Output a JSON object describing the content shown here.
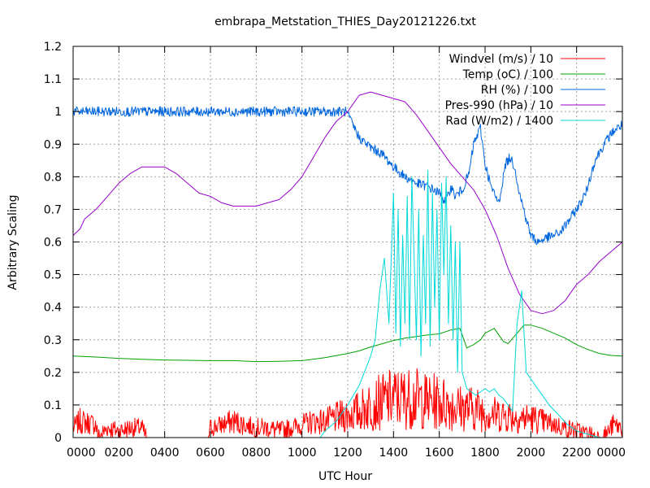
{
  "chart_data": {
    "type": "line",
    "title": "embrapa_Metstation_THIES_Day20121226.txt",
    "xlabel": "UTC Hour",
    "ylabel": "Arbitrary Scaling",
    "xlim": [
      0,
      24
    ],
    "ylim": [
      0,
      1.2
    ],
    "grid": true,
    "legend_position": "top-right",
    "x_tick_labels": [
      "0000",
      "0200",
      "0400",
      "0600",
      "0800",
      "1000",
      "1200",
      "1400",
      "1600",
      "1800",
      "2000",
      "2200",
      "0000"
    ],
    "y_tick_labels": [
      "0",
      "0.1",
      "0.2",
      "0.3",
      "0.4",
      "0.5",
      "0.6",
      "0.7",
      "0.8",
      "0.9",
      "1",
      "1.1",
      "1.2"
    ],
    "series": [
      {
        "name": "Windvel (m/s) / 10",
        "color": "#ff0000",
        "noisy": true,
        "x": [
          0,
          0.3,
          1.0,
          1.1,
          1.5,
          2.0,
          2.5,
          3.0,
          3.2,
          5.9,
          6.0,
          6.5,
          7.0,
          7.5,
          8.0,
          8.5,
          9.0,
          9.5,
          10.0,
          10.5,
          11.0,
          11.5,
          12.0,
          12.5,
          13.0,
          13.5,
          14.0,
          14.5,
          15.0,
          15.5,
          16.0,
          16.5,
          17.0,
          17.5,
          18.0,
          18.5,
          19.0,
          19.5,
          20.0,
          20.5,
          21.0,
          21.5,
          22.0,
          22.5,
          23.0,
          23.3,
          23.6,
          24.0
        ],
        "values": [
          0.03,
          0.05,
          0.04,
          0.0,
          0.03,
          0.02,
          0.03,
          0.03,
          0.0,
          0.0,
          0.03,
          0.04,
          0.05,
          0.04,
          0.03,
          0.03,
          0.02,
          0.03,
          0.04,
          0.05,
          0.05,
          0.06,
          0.07,
          0.08,
          0.1,
          0.11,
          0.12,
          0.12,
          0.12,
          0.11,
          0.11,
          0.1,
          0.09,
          0.09,
          0.08,
          0.07,
          0.07,
          0.06,
          0.06,
          0.05,
          0.04,
          0.03,
          0.02,
          0.01,
          0.0,
          0.01,
          0.04,
          0.03
        ]
      },
      {
        "name": "Temp (oC) / 100",
        "color": "#00a000",
        "noisy": false,
        "x": [
          0,
          1,
          2,
          3,
          4,
          5,
          6,
          7,
          8,
          9,
          10,
          11,
          12,
          12.5,
          13,
          13.5,
          14,
          14.5,
          15,
          15.5,
          16,
          16.5,
          16.9,
          17.2,
          17.5,
          17.8,
          18.0,
          18.4,
          18.8,
          19.0,
          19.4,
          19.7,
          20.0,
          20.5,
          21.0,
          21.5,
          22.0,
          22.5,
          23.0,
          23.5,
          24.0
        ],
        "values": [
          0.25,
          0.247,
          0.243,
          0.24,
          0.238,
          0.237,
          0.236,
          0.236,
          0.233,
          0.234,
          0.236,
          0.245,
          0.258,
          0.266,
          0.278,
          0.288,
          0.298,
          0.305,
          0.31,
          0.315,
          0.318,
          0.33,
          0.335,
          0.275,
          0.285,
          0.3,
          0.32,
          0.335,
          0.295,
          0.288,
          0.32,
          0.345,
          0.345,
          0.335,
          0.32,
          0.305,
          0.285,
          0.27,
          0.258,
          0.252,
          0.25
        ]
      },
      {
        "name": "RH (%) / 100",
        "color": "#0066dd",
        "noisy": true,
        "x": [
          0,
          11.9,
          12.0,
          12.5,
          13.0,
          13.5,
          14.0,
          14.5,
          15.0,
          15.5,
          16.0,
          16.3,
          16.5,
          16.7,
          17.0,
          17.3,
          17.5,
          17.8,
          18.0,
          18.3,
          18.6,
          18.9,
          19.1,
          19.3,
          19.5,
          19.8,
          20.0,
          20.3,
          20.6,
          21.0,
          21.3,
          21.6,
          22.0,
          22.4,
          22.8,
          23.2,
          23.6,
          24.0
        ],
        "values": [
          1.0,
          1.0,
          0.99,
          0.92,
          0.89,
          0.87,
          0.83,
          0.8,
          0.78,
          0.77,
          0.75,
          0.72,
          0.77,
          0.74,
          0.76,
          0.81,
          0.9,
          0.95,
          0.84,
          0.76,
          0.72,
          0.84,
          0.86,
          0.83,
          0.75,
          0.67,
          0.62,
          0.6,
          0.61,
          0.62,
          0.63,
          0.66,
          0.7,
          0.75,
          0.85,
          0.9,
          0.94,
          0.96
        ]
      },
      {
        "name": "Pres-990 (hPa) / 10",
        "color": "#9900cc",
        "noisy": false,
        "x": [
          0,
          0.3,
          0.5,
          1.0,
          1.5,
          2.0,
          2.5,
          3.0,
          3.5,
          4.0,
          4.5,
          5.0,
          5.5,
          6.0,
          6.5,
          7.0,
          7.5,
          8.0,
          8.5,
          9.0,
          9.5,
          10.0,
          10.5,
          11.0,
          11.5,
          12.0,
          12.5,
          13.0,
          13.5,
          14.0,
          14.5,
          15.0,
          15.5,
          16.0,
          16.5,
          17.0,
          17.5,
          18.0,
          18.5,
          19.0,
          19.5,
          20.0,
          20.5,
          21.0,
          21.5,
          22.0,
          22.5,
          23.0,
          23.5,
          24.0
        ],
        "values": [
          0.62,
          0.64,
          0.67,
          0.7,
          0.74,
          0.78,
          0.81,
          0.83,
          0.83,
          0.83,
          0.81,
          0.78,
          0.75,
          0.74,
          0.72,
          0.71,
          0.71,
          0.71,
          0.72,
          0.73,
          0.76,
          0.8,
          0.86,
          0.92,
          0.97,
          1.0,
          1.05,
          1.06,
          1.05,
          1.04,
          1.03,
          0.99,
          0.94,
          0.89,
          0.84,
          0.8,
          0.76,
          0.7,
          0.62,
          0.52,
          0.44,
          0.39,
          0.38,
          0.39,
          0.42,
          0.47,
          0.5,
          0.54,
          0.57,
          0.6
        ]
      },
      {
        "name": "Rad (W/m2) / 1400",
        "color": "#00d8d8",
        "noisy": false,
        "x": [
          0,
          10.8,
          11.0,
          11.5,
          12.0,
          12.5,
          13.0,
          13.2,
          13.4,
          13.6,
          13.8,
          14.0,
          14.1,
          14.2,
          14.3,
          14.4,
          14.5,
          14.6,
          14.7,
          14.8,
          14.9,
          15.0,
          15.1,
          15.2,
          15.3,
          15.4,
          15.5,
          15.6,
          15.7,
          15.8,
          15.9,
          16.0,
          16.1,
          16.2,
          16.3,
          16.4,
          16.5,
          16.6,
          16.7,
          16.8,
          16.9,
          17.0,
          17.2,
          17.4,
          17.6,
          17.8,
          18.0,
          18.2,
          18.4,
          18.6,
          18.8,
          19.0,
          19.2,
          19.4,
          19.6,
          19.8,
          20.0,
          20.4,
          20.8,
          21.2,
          21.6,
          22.0,
          23.0,
          24.0
        ],
        "values": [
          0.0,
          0.0,
          0.02,
          0.05,
          0.1,
          0.16,
          0.25,
          0.3,
          0.45,
          0.55,
          0.35,
          0.75,
          0.32,
          0.7,
          0.28,
          0.62,
          0.35,
          0.74,
          0.3,
          0.8,
          0.55,
          0.3,
          0.7,
          0.25,
          0.62,
          0.35,
          0.82,
          0.28,
          0.75,
          0.4,
          0.7,
          0.3,
          0.78,
          0.5,
          0.8,
          0.35,
          0.65,
          0.3,
          0.6,
          0.2,
          0.6,
          0.2,
          0.15,
          0.14,
          0.13,
          0.14,
          0.15,
          0.14,
          0.15,
          0.13,
          0.12,
          0.1,
          0.08,
          0.35,
          0.45,
          0.2,
          0.18,
          0.14,
          0.1,
          0.07,
          0.04,
          0.02,
          0.0,
          0.0
        ]
      }
    ]
  }
}
